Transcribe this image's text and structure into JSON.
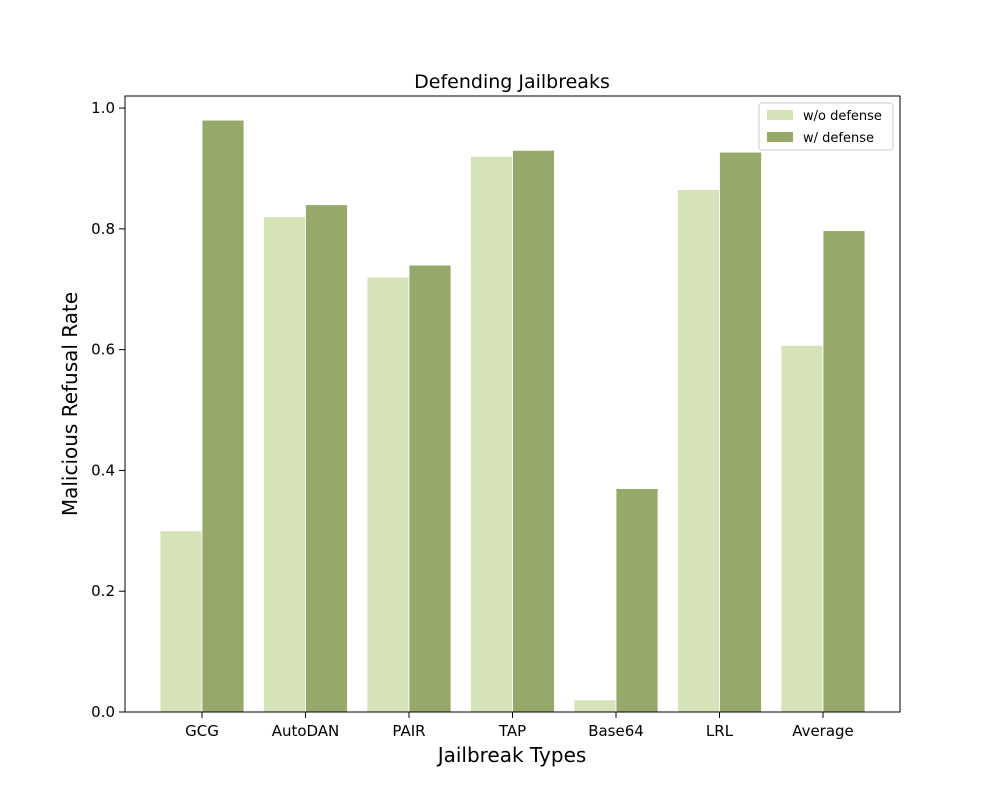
{
  "chart_data": {
    "type": "bar",
    "title": "Defending Jailbreaks",
    "xlabel": "Jailbreak Types",
    "ylabel": "Malicious Refusal Rate",
    "ylim": [
      0,
      1.02
    ],
    "yticks": [
      "0.0",
      "0.2",
      "0.4",
      "0.6",
      "0.8",
      "1.0"
    ],
    "categories": [
      "GCG",
      "AutoDAN",
      "PAIR",
      "TAP",
      "Base64",
      "LRL",
      "Average"
    ],
    "series": [
      {
        "name": "w/o defense",
        "color": "#d6e2b7",
        "values": [
          0.3,
          0.82,
          0.72,
          0.92,
          0.02,
          0.865,
          0.607
        ]
      },
      {
        "name": "w/ defense",
        "color": "#97a96a",
        "values": [
          0.98,
          0.84,
          0.74,
          0.93,
          0.37,
          0.927,
          0.797
        ]
      }
    ],
    "legend_position": "top-right",
    "grid": false
  }
}
